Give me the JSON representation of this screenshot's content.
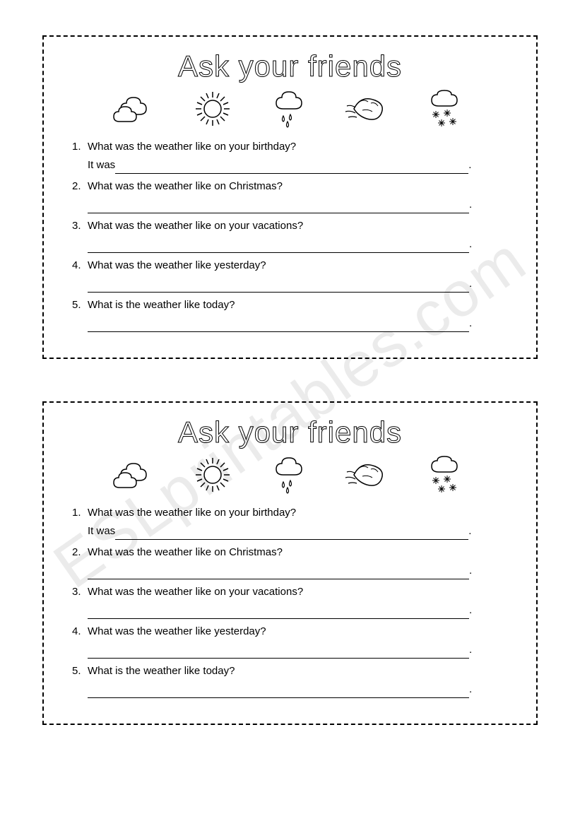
{
  "watermark_text": "ESLprintables.com",
  "title": "Ask your friends",
  "title_fontsize": 42,
  "title_font": "Comic Sans MS",
  "border_style": "dashed",
  "border_color": "#000000",
  "background_color": "#ffffff",
  "text_color": "#000000",
  "question_fontsize": 15,
  "icons": [
    {
      "name": "cloudy-icon",
      "type": "cloudy"
    },
    {
      "name": "sunny-icon",
      "type": "sunny"
    },
    {
      "name": "rainy-icon",
      "type": "rainy"
    },
    {
      "name": "windy-icon",
      "type": "windy"
    },
    {
      "name": "snowy-icon",
      "type": "snowy"
    }
  ],
  "questions": [
    {
      "num": "1.",
      "text": "What was the weather like on your birthday?",
      "answer_prefix": "It was"
    },
    {
      "num": "2.",
      "text": "What was the weather like on Christmas?",
      "answer_prefix": ""
    },
    {
      "num": "3.",
      "text": "What was the weather like on your vacations?",
      "answer_prefix": ""
    },
    {
      "num": "4.",
      "text": "What was the weather like yesterday?",
      "answer_prefix": ""
    },
    {
      "num": "5.",
      "text": "What is the weather like today?",
      "answer_prefix": ""
    }
  ],
  "period": ".",
  "card_count": 2
}
